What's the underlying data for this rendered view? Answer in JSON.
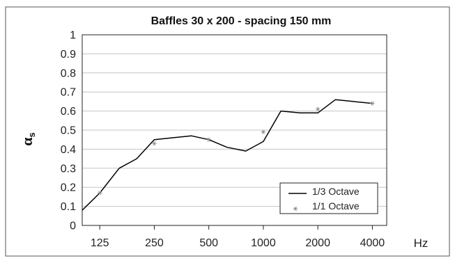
{
  "chart_data": {
    "type": "line",
    "title": "Baffles 30 x 200 - spacing 150 mm",
    "xlabel": "Hz",
    "ylabel_symbol": "α",
    "ylabel_subscript": "s",
    "xscale": "log",
    "ylim": [
      0,
      1
    ],
    "yticks": [
      "0",
      "0.1",
      "0.2",
      "0.3",
      "0.4",
      "0.5",
      "0.6",
      "0.7",
      "0.8",
      "0.9",
      "1"
    ],
    "xticks": [
      {
        "value": 125,
        "label": "125"
      },
      {
        "value": 250,
        "label": "250"
      },
      {
        "value": 500,
        "label": "500"
      },
      {
        "value": 1000,
        "label": "1000"
      },
      {
        "value": 2000,
        "label": "2000"
      },
      {
        "value": 4000,
        "label": "4000"
      }
    ],
    "grid": "horizontal",
    "legend_position": "bottom-right",
    "series": [
      {
        "name": "1/3 Octave",
        "style": "line",
        "color": "#000000",
        "x": [
          100,
          125,
          160,
          200,
          250,
          315,
          400,
          500,
          630,
          800,
          1000,
          1250,
          1600,
          2000,
          2500,
          3150,
          4000
        ],
        "y": [
          0.08,
          0.17,
          0.3,
          0.35,
          0.45,
          0.46,
          0.47,
          0.45,
          0.41,
          0.39,
          0.44,
          0.6,
          0.59,
          0.59,
          0.66,
          0.65,
          0.64
        ]
      },
      {
        "name": "1/1 Octave",
        "style": "marker",
        "marker": "*",
        "color": "#888888",
        "x": [
          125,
          250,
          500,
          1000,
          2000,
          4000
        ],
        "y": [
          0.17,
          0.43,
          0.45,
          0.49,
          0.61,
          0.64
        ]
      }
    ]
  }
}
